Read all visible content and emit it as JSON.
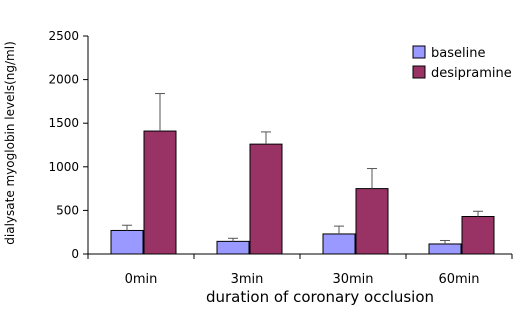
{
  "chart_data": {
    "type": "bar",
    "title": "",
    "xlabel": "duration of coronary  occlusion",
    "ylabel": "dialysate myoglobin levels(ng/ml)",
    "categories": [
      "0min",
      "3min",
      "30min",
      "60min"
    ],
    "ylim": [
      0,
      2500
    ],
    "yticks": [
      "0",
      "500",
      "1000",
      "1500",
      "2000",
      "2500"
    ],
    "grid": false,
    "legend_position": "top-right",
    "series": [
      {
        "name": "baseline",
        "values": [
          270,
          145,
          230,
          115
        ],
        "errors": [
          60,
          35,
          90,
          40
        ],
        "color": "#9999ff"
      },
      {
        "name": "desipramine",
        "values": [
          1410,
          1260,
          750,
          430
        ],
        "errors": [
          430,
          140,
          230,
          60
        ],
        "color": "#993366"
      }
    ]
  }
}
